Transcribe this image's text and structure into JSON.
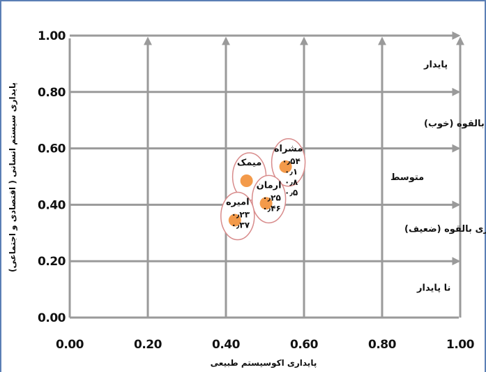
{
  "chart_data": {
    "type": "scatter",
    "title": "",
    "xlabel": "پایداری اکوسیستم طبیعی",
    "ylabel": "پایداری سیستم انسانی ( اقتصادی و اجتماعی)",
    "xlim": [
      0,
      1
    ],
    "ylim": [
      0,
      1
    ],
    "x_ticks": [
      "0.00",
      "0.20",
      "0.40",
      "0.60",
      "0.80",
      "1.00"
    ],
    "y_ticks": [
      "0.00",
      "0.20",
      "0.40",
      "0.60",
      "0.80",
      "1.00"
    ],
    "grid": true,
    "zones": [
      {
        "label": "پایدار",
        "y": 0.9
      },
      {
        "label": "پایداری  بالقوه (خوب)",
        "y": 0.7
      },
      {
        "label": "متوسط",
        "y": 0.5
      },
      {
        "label": "ناپایداری بالقوه (ضعیف)",
        "y": 0.3
      },
      {
        "label": "نا پایدار",
        "y": 0.1
      }
    ],
    "points": [
      {
        "name": "مشراه",
        "x": 0.56,
        "y": 0.55,
        "values": [
          "۰٫۵۴",
          "۰٫۱",
          "۰٫۸",
          "۰٫۵"
        ]
      },
      {
        "name": "میمک",
        "x": 0.46,
        "y": 0.5,
        "values": []
      },
      {
        "name": "ارمان",
        "x": 0.51,
        "y": 0.42,
        "values": [
          "۰٫۲۵",
          "۰٫۴۶"
        ]
      },
      {
        "name": "امیره",
        "x": 0.43,
        "y": 0.36,
        "values": [
          "۰٫۲۳",
          "۰٫۳۷"
        ]
      }
    ],
    "series_color": "#f39a4a"
  }
}
